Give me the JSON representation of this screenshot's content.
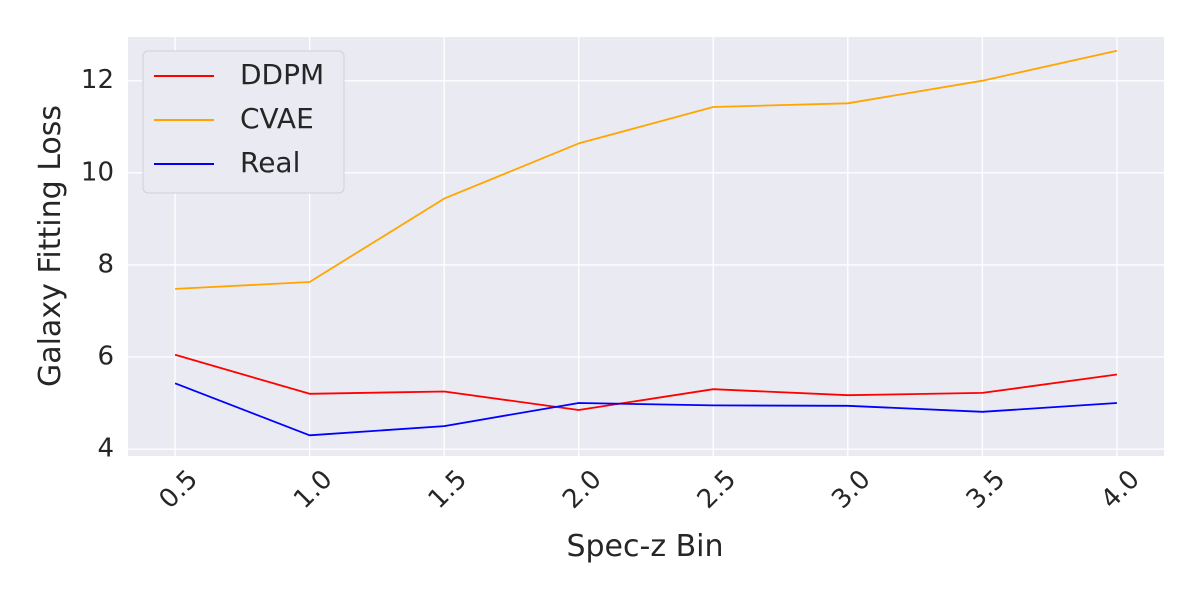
{
  "chart_data": {
    "type": "line",
    "title": "",
    "xlabel": "Spec-z Bin",
    "ylabel": "Galaxy Fitting Loss",
    "x": [
      0.5,
      1.0,
      1.5,
      2.0,
      2.5,
      3.0,
      3.5,
      4.0
    ],
    "x_tick_labels": [
      "0.5",
      "1.0",
      "1.5",
      "2.0",
      "2.5",
      "3.0",
      "3.5",
      "4.0"
    ],
    "xlim": [
      0.325,
      4.175
    ],
    "y_ticks": [
      4,
      6,
      8,
      10,
      12
    ],
    "y_tick_labels": [
      "4",
      "6",
      "8",
      "10",
      "12"
    ],
    "ylim": [
      3.85,
      12.95
    ],
    "grid": true,
    "legend_position": "top-left",
    "series": [
      {
        "name": "DDPM",
        "color": "#ff0000",
        "values": [
          6.05,
          5.2,
          5.25,
          4.85,
          5.3,
          5.17,
          5.22,
          5.62
        ]
      },
      {
        "name": "CVAE",
        "color": "#ffa500",
        "values": [
          7.48,
          7.63,
          9.44,
          10.64,
          11.43,
          11.51,
          12.0,
          12.65
        ]
      },
      {
        "name": "Real",
        "color": "#0000ff",
        "values": [
          5.43,
          4.3,
          4.5,
          5.0,
          4.95,
          4.94,
          4.81,
          5.0
        ]
      }
    ]
  },
  "colors": {
    "plot_background": "#eaeaf2",
    "grid": "#ffffff"
  }
}
